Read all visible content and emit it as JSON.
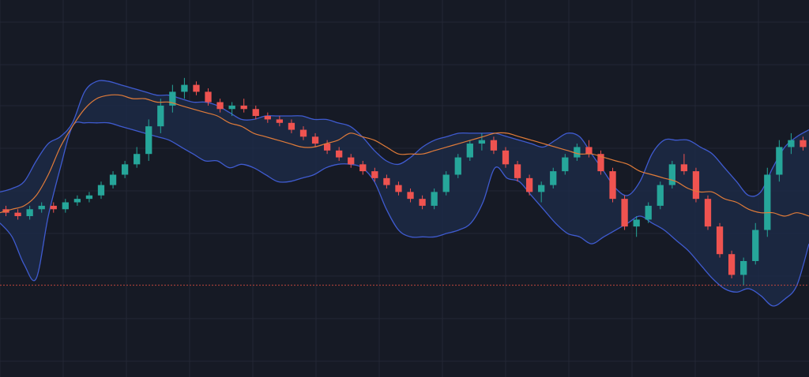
{
  "chart_data": {
    "type": "candlestick",
    "indicators": [
      "bollinger-bands",
      "moving-average"
    ],
    "grid": true,
    "colors": {
      "background": "#161a25",
      "grid": "#232735",
      "up": "#26a69a",
      "down": "#ef5350",
      "band_line": "#3f5bd0",
      "band_fill": "#1d2c4a",
      "ma": "#e07b39",
      "price_line": "#c0463c"
    },
    "ylim": [
      0,
      100
    ],
    "price_line": 22,
    "ma": [
      43,
      44,
      45,
      48,
      54,
      62,
      68,
      73,
      76,
      77,
      77,
      76,
      76,
      75,
      75,
      74,
      73,
      72,
      71,
      69,
      68,
      66,
      65,
      64,
      63,
      62,
      62,
      63,
      64,
      66,
      65,
      64,
      62,
      60,
      60,
      60,
      61,
      62,
      63,
      64,
      65,
      66,
      66,
      65,
      64,
      63,
      62,
      61,
      60,
      60,
      59,
      58,
      57,
      55,
      54,
      53,
      52,
      50,
      49,
      49,
      47,
      46,
      44,
      43,
      43,
      42,
      43,
      42
    ],
    "bb_upper": [
      49,
      50,
      52,
      58,
      63,
      65,
      69,
      78,
      81,
      81,
      80,
      79,
      78,
      77,
      77,
      76,
      75,
      75,
      74,
      72,
      70,
      70,
      71,
      71,
      71,
      71,
      70,
      70,
      69,
      68,
      65,
      61,
      58,
      57,
      59,
      62,
      64,
      65,
      66,
      66,
      66,
      66,
      65,
      64,
      63,
      62,
      64,
      66,
      65,
      60,
      55,
      50,
      48,
      52,
      60,
      64,
      64,
      64,
      62,
      60,
      56,
      52,
      48,
      49,
      56,
      62,
      65,
      67
    ],
    "bb_lower": [
      40,
      36,
      28,
      24,
      42,
      56,
      68,
      69,
      69,
      69,
      68,
      67,
      66,
      65,
      64,
      62,
      60,
      58,
      58,
      56,
      57,
      56,
      54,
      52,
      52,
      53,
      54,
      56,
      57,
      57,
      56,
      52,
      44,
      38,
      36,
      36,
      36,
      37,
      38,
      40,
      46,
      56,
      53,
      52,
      48,
      44,
      40,
      37,
      36,
      34,
      36,
      38,
      40,
      42,
      40,
      38,
      35,
      32,
      28,
      24,
      21,
      20,
      21,
      19,
      16,
      18,
      22,
      34
    ],
    "candles": [
      [
        44,
        45,
        42,
        43
      ],
      [
        43,
        44,
        41,
        42
      ],
      [
        42,
        45,
        41,
        44
      ],
      [
        44,
        46,
        43,
        45
      ],
      [
        45,
        46,
        43,
        44
      ],
      [
        44,
        47,
        43,
        46
      ],
      [
        46,
        48,
        45,
        47
      ],
      [
        47,
        49,
        46,
        48
      ],
      [
        48,
        52,
        47,
        51
      ],
      [
        51,
        55,
        50,
        54
      ],
      [
        54,
        58,
        53,
        57
      ],
      [
        57,
        62,
        56,
        60
      ],
      [
        60,
        70,
        58,
        68
      ],
      [
        68,
        76,
        66,
        74
      ],
      [
        74,
        80,
        72,
        78
      ],
      [
        78,
        82,
        76,
        80
      ],
      [
        80,
        81,
        77,
        78
      ],
      [
        78,
        79,
        74,
        75
      ],
      [
        75,
        76,
        72,
        73
      ],
      [
        73,
        75,
        71,
        74
      ],
      [
        74,
        76,
        72,
        73
      ],
      [
        73,
        74,
        70,
        71
      ],
      [
        71,
        72,
        69,
        70
      ],
      [
        70,
        71,
        68,
        69
      ],
      [
        69,
        70,
        66,
        67
      ],
      [
        67,
        68,
        64,
        65
      ],
      [
        65,
        66,
        62,
        63
      ],
      [
        63,
        64,
        60,
        61
      ],
      [
        61,
        62,
        58,
        59
      ],
      [
        59,
        60,
        56,
        57
      ],
      [
        57,
        58,
        54,
        55
      ],
      [
        55,
        56,
        52,
        53
      ],
      [
        53,
        54,
        50,
        51
      ],
      [
        51,
        52,
        48,
        49
      ],
      [
        49,
        50,
        46,
        47
      ],
      [
        47,
        48,
        44,
        45
      ],
      [
        45,
        50,
        44,
        49
      ],
      [
        49,
        55,
        48,
        54
      ],
      [
        54,
        60,
        53,
        59
      ],
      [
        59,
        64,
        58,
        63
      ],
      [
        63,
        66,
        61,
        64
      ],
      [
        64,
        65,
        60,
        61
      ],
      [
        61,
        62,
        56,
        57
      ],
      [
        57,
        58,
        52,
        53
      ],
      [
        53,
        54,
        48,
        49
      ],
      [
        49,
        52,
        46,
        51
      ],
      [
        51,
        56,
        50,
        55
      ],
      [
        55,
        60,
        54,
        59
      ],
      [
        59,
        63,
        58,
        62
      ],
      [
        62,
        64,
        59,
        60
      ],
      [
        60,
        61,
        54,
        55
      ],
      [
        55,
        56,
        46,
        47
      ],
      [
        47,
        48,
        38,
        39
      ],
      [
        39,
        42,
        36,
        41
      ],
      [
        41,
        46,
        40,
        45
      ],
      [
        45,
        52,
        44,
        51
      ],
      [
        51,
        58,
        50,
        57
      ],
      [
        57,
        60,
        54,
        55
      ],
      [
        55,
        56,
        46,
        47
      ],
      [
        47,
        48,
        38,
        39
      ],
      [
        39,
        40,
        30,
        31
      ],
      [
        31,
        32,
        24,
        25
      ],
      [
        25,
        30,
        22,
        29
      ],
      [
        29,
        40,
        28,
        38
      ],
      [
        38,
        56,
        36,
        54
      ],
      [
        54,
        64,
        52,
        62
      ],
      [
        62,
        66,
        60,
        64
      ],
      [
        64,
        65,
        61,
        62
      ]
    ]
  }
}
